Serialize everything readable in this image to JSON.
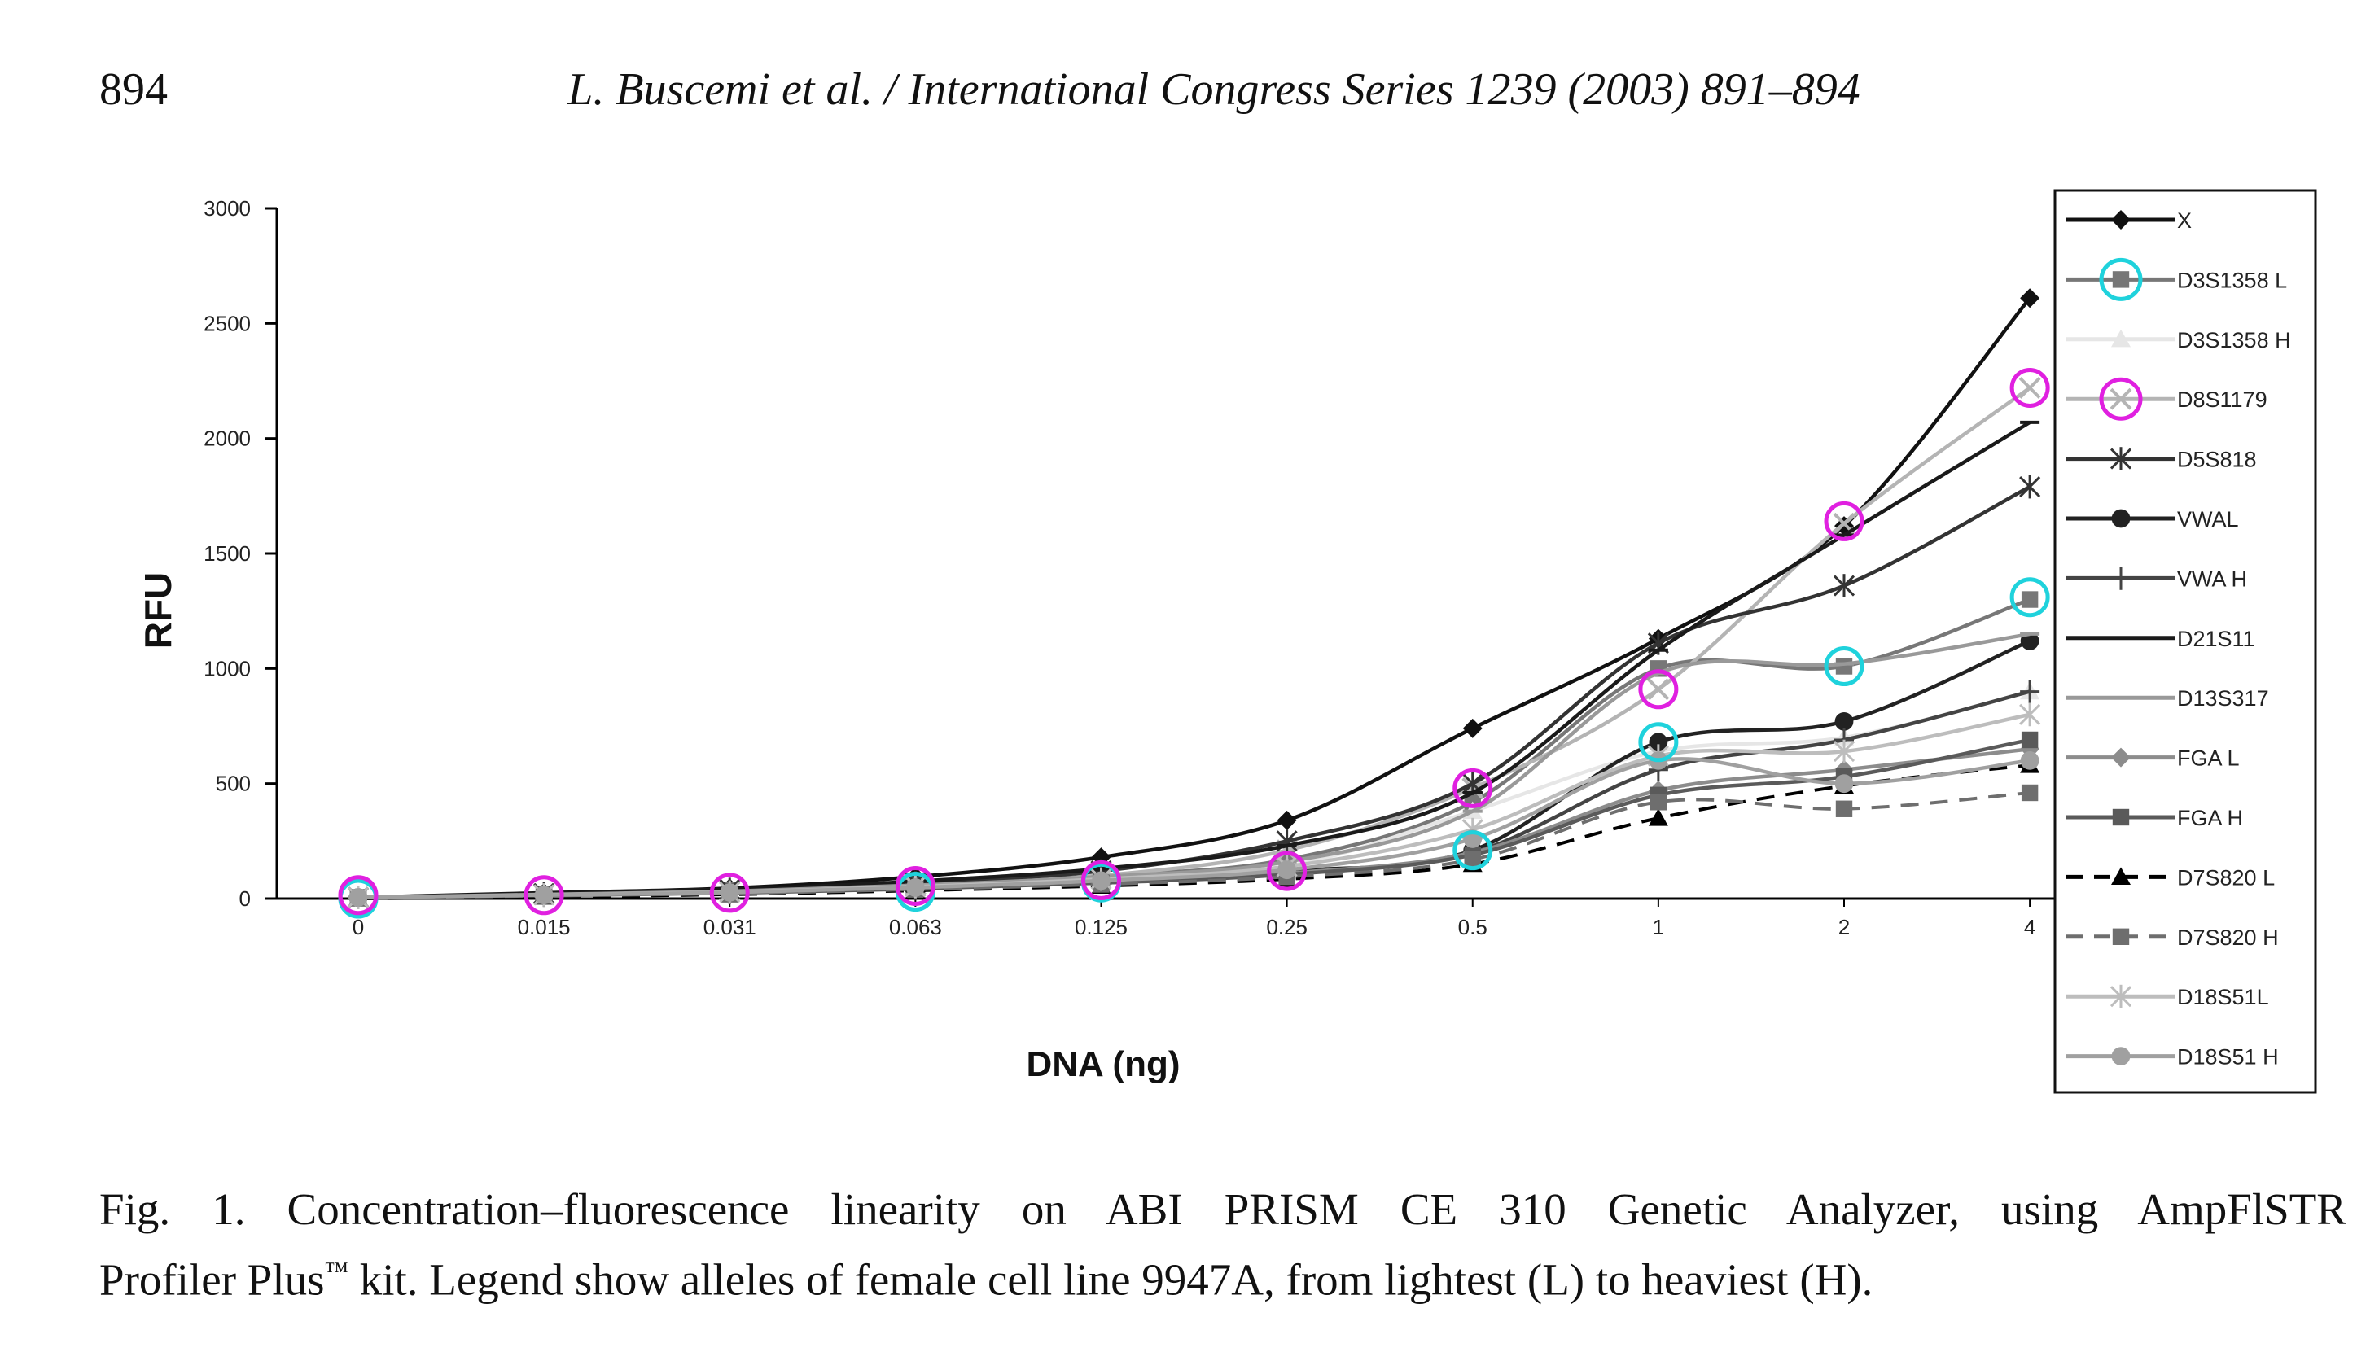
{
  "header": {
    "page_number": "894",
    "running_head": "L. Buscemi et al. / International Congress Series 1239 (2003) 891–894"
  },
  "caption": {
    "line1": "Fig. 1. Concentration–fluorescence linearity on ABI PRISM CE 310 Genetic Analyzer, using AmpFlSTR",
    "line2_pre": "Profiler Plus",
    "tm": "™",
    "line2_post": " kit. Legend show alleles of female cell line 9947A, from lightest (L) to heaviest (H)."
  },
  "chart_data": {
    "type": "line",
    "xlabel": "DNA (ng)",
    "ylabel": "RFU",
    "categories": [
      "0",
      "0.015",
      "0.031",
      "0.063",
      "0.125",
      "0.25",
      "0.5",
      "1",
      "2",
      "4"
    ],
    "ylim": [
      0,
      3000
    ],
    "yticks": [
      0,
      500,
      1000,
      1500,
      2000,
      2500,
      3000
    ],
    "grid": false,
    "legend_position": "right",
    "series": [
      {
        "name": "X",
        "color": "#111111",
        "marker": "diamond",
        "dash": false,
        "values": [
          5,
          25,
          45,
          95,
          180,
          340,
          740,
          1130,
          1620,
          2610
        ]
      },
      {
        "name": "D3S1358 L",
        "color": "#777777",
        "marker": "square",
        "dash": false,
        "values": [
          5,
          20,
          35,
          60,
          100,
          170,
          420,
          1000,
          1010,
          1300
        ]
      },
      {
        "name": "D3S1358 H",
        "color": "#e6e6e6",
        "marker": "triangle",
        "dash": false,
        "values": [
          5,
          18,
          30,
          55,
          85,
          140,
          380,
          640,
          700,
          900
        ]
      },
      {
        "name": "D8S1179",
        "color": "#b4b4b4",
        "marker": "cross",
        "dash": false,
        "values": [
          5,
          20,
          35,
          60,
          100,
          210,
          480,
          910,
          1630,
          2220
        ]
      },
      {
        "name": "D5S818",
        "color": "#333333",
        "marker": "star",
        "dash": false,
        "values": [
          5,
          22,
          40,
          70,
          120,
          250,
          500,
          1110,
          1360,
          1790
        ]
      },
      {
        "name": "VWAL",
        "color": "#222222",
        "marker": "circle",
        "dash": false,
        "values": [
          5,
          15,
          28,
          50,
          80,
          120,
          210,
          680,
          770,
          1120
        ]
      },
      {
        "name": "VWA H",
        "color": "#444444",
        "marker": "plus",
        "dash": false,
        "values": [
          5,
          15,
          26,
          45,
          75,
          110,
          200,
          560,
          690,
          900
        ]
      },
      {
        "name": "D21S11",
        "color": "#1a1a1a",
        "marker": "dash",
        "dash": false,
        "values": [
          5,
          22,
          40,
          75,
          130,
          230,
          460,
          1080,
          1580,
          2070
        ]
      },
      {
        "name": "D13S317",
        "color": "#999999",
        "marker": "dash",
        "dash": false,
        "values": [
          5,
          18,
          32,
          58,
          95,
          160,
          380,
          980,
          1020,
          1150
        ]
      },
      {
        "name": "FGA L",
        "color": "#8c8c8c",
        "marker": "diamond",
        "dash": false,
        "values": [
          5,
          15,
          25,
          45,
          70,
          110,
          200,
          470,
          560,
          650
        ]
      },
      {
        "name": "FGA H",
        "color": "#5a5a5a",
        "marker": "square",
        "dash": false,
        "values": [
          5,
          14,
          24,
          42,
          68,
          105,
          190,
          450,
          530,
          690
        ]
      },
      {
        "name": "D7S820 L",
        "color": "#000000",
        "marker": "triangle",
        "dash": true,
        "values": [
          0,
          8,
          18,
          35,
          55,
          85,
          150,
          350,
          490,
          580
        ]
      },
      {
        "name": "D7S820 H",
        "color": "#6e6e6e",
        "marker": "square",
        "dash": true,
        "values": [
          3,
          12,
          22,
          40,
          62,
          95,
          170,
          420,
          390,
          460
        ]
      },
      {
        "name": "D18S51L",
        "color": "#bdbdbd",
        "marker": "star",
        "dash": false,
        "values": [
          5,
          16,
          28,
          52,
          85,
          140,
          300,
          620,
          640,
          800
        ]
      },
      {
        "name": "D18S51 H",
        "color": "#a0a0a0",
        "marker": "circle",
        "dash": false,
        "values": [
          5,
          15,
          27,
          48,
          78,
          125,
          260,
          600,
          500,
          600
        ]
      }
    ],
    "highlight_circles": [
      {
        "color": "#1fd2dc",
        "points": [
          [
            "0",
            0
          ],
          [
            "0.063",
            30
          ],
          [
            "0.125",
            70
          ],
          [
            "0.5",
            210
          ],
          [
            "1",
            680
          ],
          [
            "2",
            1010
          ],
          [
            "4",
            1310
          ]
        ]
      },
      {
        "color": "#e020e0",
        "points": [
          [
            "0",
            15
          ],
          [
            "0.015",
            15
          ],
          [
            "0.031",
            25
          ],
          [
            "0.063",
            55
          ],
          [
            "0.125",
            80
          ],
          [
            "0.25",
            120
          ],
          [
            "0.5",
            480
          ],
          [
            "1",
            910
          ],
          [
            "2",
            1640
          ],
          [
            "4",
            2220
          ]
        ]
      }
    ],
    "legend_highlights": {
      "D3S1358 L": "#1fd2dc",
      "D8S1179": "#e020e0"
    }
  }
}
